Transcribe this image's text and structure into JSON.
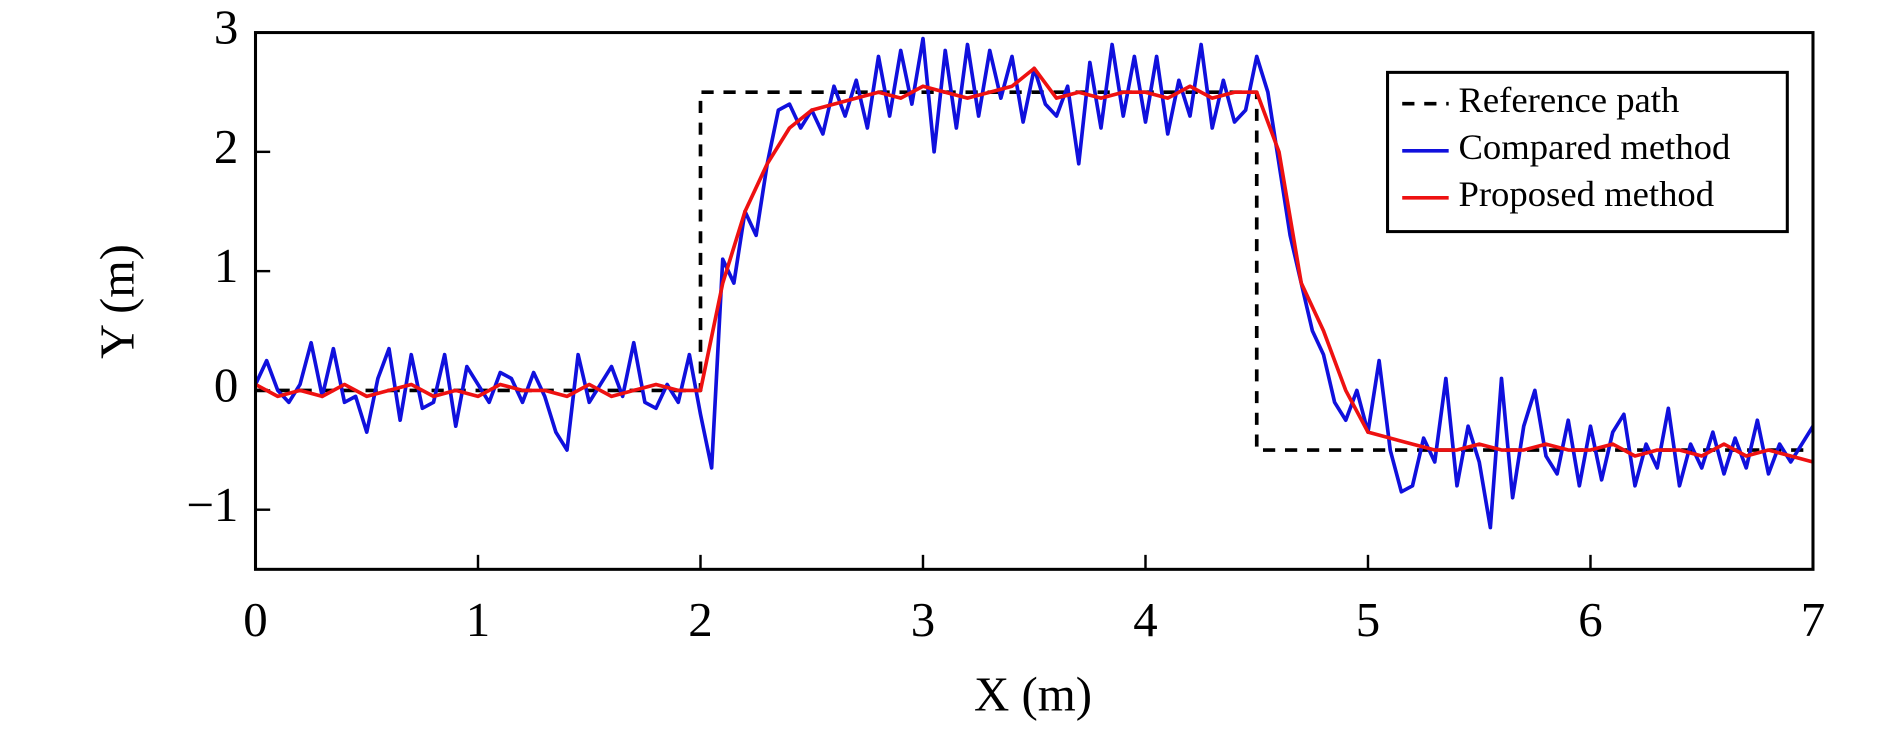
{
  "chart_data": {
    "type": "line",
    "xlabel": "X (m)",
    "ylabel": "Y (m)",
    "xlim": [
      0,
      7
    ],
    "xticks": [
      0,
      1,
      2,
      3,
      4,
      5,
      6,
      7
    ],
    "ylim": [
      -1.5,
      3
    ],
    "yticks": [
      {
        "value": -1,
        "label": "−1"
      },
      0,
      1,
      2,
      3
    ],
    "legend": "upper right",
    "series": [
      {
        "name": "Reference path",
        "color": "#000000",
        "dash": true,
        "x": [
          0,
          2,
          2,
          4.5,
          4.5,
          7
        ],
        "values": [
          0,
          0,
          2.5,
          2.5,
          -0.5,
          -0.5
        ]
      },
      {
        "name": "Compared method",
        "color": "#1010dd",
        "x": [
          0,
          0.05,
          0.1,
          0.15,
          0.2,
          0.25,
          0.3,
          0.35,
          0.4,
          0.45,
          0.5,
          0.55,
          0.6,
          0.65,
          0.7,
          0.75,
          0.8,
          0.85,
          0.9,
          0.95,
          1,
          1.05,
          1.1,
          1.15,
          1.2,
          1.25,
          1.3,
          1.35,
          1.4,
          1.45,
          1.5,
          1.55,
          1.6,
          1.65,
          1.7,
          1.75,
          1.8,
          1.85,
          1.9,
          1.95,
          2,
          2.05,
          2.1,
          2.15,
          2.2,
          2.25,
          2.3,
          2.35,
          2.4,
          2.45,
          2.5,
          2.55,
          2.6,
          2.65,
          2.7,
          2.75,
          2.8,
          2.85,
          2.9,
          2.95,
          3,
          3.05,
          3.1,
          3.15,
          3.2,
          3.25,
          3.3,
          3.35,
          3.4,
          3.45,
          3.5,
          3.55,
          3.6,
          3.65,
          3.7,
          3.75,
          3.8,
          3.85,
          3.9,
          3.95,
          4,
          4.05,
          4.1,
          4.15,
          4.2,
          4.25,
          4.3,
          4.35,
          4.4,
          4.45,
          4.5,
          4.55,
          4.6,
          4.65,
          4.7,
          4.75,
          4.8,
          4.85,
          4.9,
          4.95,
          5,
          5.05,
          5.1,
          5.15,
          5.2,
          5.25,
          5.3,
          5.35,
          5.4,
          5.45,
          5.5,
          5.55,
          5.6,
          5.65,
          5.7,
          5.75,
          5.8,
          5.85,
          5.9,
          5.95,
          6,
          6.05,
          6.1,
          6.15,
          6.2,
          6.25,
          6.3,
          6.35,
          6.4,
          6.45,
          6.5,
          6.55,
          6.6,
          6.65,
          6.7,
          6.75,
          6.8,
          6.85,
          6.9,
          6.95,
          7
        ],
        "values": [
          0.05,
          0.25,
          0,
          -0.1,
          0.05,
          0.4,
          -0.05,
          0.35,
          -0.1,
          -0.05,
          -0.35,
          0.1,
          0.35,
          -0.25,
          0.3,
          -0.15,
          -0.1,
          0.3,
          -0.3,
          0.2,
          0.05,
          -0.1,
          0.15,
          0.1,
          -0.1,
          0.15,
          -0.05,
          -0.35,
          -0.5,
          0.3,
          -0.1,
          0.05,
          0.2,
          -0.05,
          0.4,
          -0.1,
          -0.15,
          0.05,
          -0.1,
          0.3,
          -0.2,
          -0.65,
          1.1,
          0.9,
          1.5,
          1.3,
          1.9,
          2.35,
          2.4,
          2.2,
          2.35,
          2.15,
          2.55,
          2.3,
          2.6,
          2.2,
          2.8,
          2.3,
          2.85,
          2.4,
          2.95,
          2,
          2.85,
          2.2,
          2.9,
          2.3,
          2.85,
          2.45,
          2.8,
          2.25,
          2.7,
          2.4,
          2.3,
          2.55,
          1.9,
          2.75,
          2.2,
          2.9,
          2.3,
          2.8,
          2.25,
          2.8,
          2.15,
          2.6,
          2.3,
          2.9,
          2.2,
          2.6,
          2.25,
          2.35,
          2.8,
          2.5,
          1.9,
          1.3,
          0.9,
          0.5,
          0.3,
          -0.1,
          -0.25,
          0,
          -0.35,
          0.25,
          -0.5,
          -0.85,
          -0.8,
          -0.4,
          -0.6,
          0.1,
          -0.8,
          -0.3,
          -0.6,
          -1.15,
          0.1,
          -0.9,
          -0.3,
          0,
          -0.55,
          -0.7,
          -0.25,
          -0.8,
          -0.3,
          -0.75,
          -0.35,
          -0.2,
          -0.8,
          -0.45,
          -0.65,
          -0.15,
          -0.8,
          -0.45,
          -0.65,
          -0.35,
          -0.7,
          -0.4,
          -0.65,
          -0.25,
          -0.7,
          -0.45,
          -0.6,
          -0.45,
          -0.3
        ]
      },
      {
        "name": "Proposed method",
        "color": "#ee1111",
        "x": [
          0,
          0.1,
          0.2,
          0.3,
          0.4,
          0.5,
          0.6,
          0.7,
          0.8,
          0.9,
          1,
          1.1,
          1.2,
          1.3,
          1.4,
          1.5,
          1.6,
          1.7,
          1.8,
          1.9,
          2,
          2.1,
          2.2,
          2.3,
          2.4,
          2.5,
          2.6,
          2.7,
          2.8,
          2.9,
          3,
          3.1,
          3.2,
          3.3,
          3.4,
          3.5,
          3.6,
          3.7,
          3.8,
          3.9,
          4,
          4.1,
          4.2,
          4.3,
          4.4,
          4.5,
          4.6,
          4.7,
          4.8,
          4.9,
          5,
          5.1,
          5.2,
          5.3,
          5.4,
          5.5,
          5.6,
          5.7,
          5.8,
          5.9,
          6,
          6.1,
          6.2,
          6.3,
          6.4,
          6.5,
          6.6,
          6.7,
          6.8,
          6.9,
          7
        ],
        "values": [
          0.05,
          -0.05,
          0,
          -0.05,
          0.05,
          -0.05,
          0,
          0.05,
          -0.05,
          0,
          -0.05,
          0.05,
          0,
          0,
          -0.05,
          0.05,
          -0.05,
          0,
          0.05,
          0,
          0,
          0.9,
          1.5,
          1.9,
          2.2,
          2.35,
          2.4,
          2.45,
          2.5,
          2.45,
          2.55,
          2.5,
          2.45,
          2.5,
          2.55,
          2.7,
          2.45,
          2.5,
          2.45,
          2.5,
          2.5,
          2.45,
          2.55,
          2.45,
          2.5,
          2.5,
          2,
          0.9,
          0.5,
          0,
          -0.35,
          -0.4,
          -0.45,
          -0.5,
          -0.5,
          -0.45,
          -0.5,
          -0.5,
          -0.45,
          -0.5,
          -0.5,
          -0.45,
          -0.55,
          -0.5,
          -0.5,
          -0.55,
          -0.45,
          -0.55,
          -0.5,
          -0.55,
          -0.6
        ]
      }
    ]
  }
}
